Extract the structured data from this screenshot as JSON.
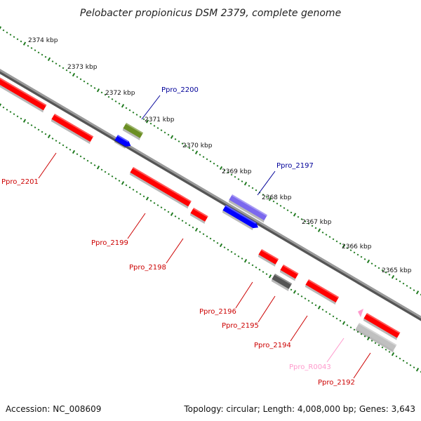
{
  "title": "Pelobacter propionicus DSM 2379, complete genome",
  "footer": {
    "accession": "Accession: NC_008609",
    "summary": "Topology: circular; Length: 4,008,000 bp; Genes: 3,643"
  },
  "colors": {
    "backbone": "#8a8a8a",
    "ticks": "#1f7a1f",
    "forward": "#ff0000",
    "reverse_label": "#cc0000",
    "blue": "#0000ff",
    "navy_label": "#000099",
    "olive": "#6b8e23",
    "violet": "#7b68ee",
    "dark_gray": "#555555",
    "light_gray": "#c0c0c0",
    "pink": "#ff99cc"
  },
  "kbp_ticks": [
    "2374 kbp",
    "2373 kbp",
    "2372 kbp",
    "2371 kbp",
    "2370 kbp",
    "2369 kbp",
    "2368 kbp",
    "2367 kbp",
    "2366 kbp",
    "2365 kbp"
  ],
  "gene_labels": [
    {
      "text": "Ppro_2201",
      "color": "#cc0000"
    },
    {
      "text": "Ppro_2200",
      "color": "#000099"
    },
    {
      "text": "Ppro_2199",
      "color": "#cc0000"
    },
    {
      "text": "Ppro_2198",
      "color": "#cc0000"
    },
    {
      "text": "Ppro_2197",
      "color": "#000099"
    },
    {
      "text": "Ppro_2196",
      "color": "#cc0000"
    },
    {
      "text": "Ppro_2195",
      "color": "#cc0000"
    },
    {
      "text": "Ppro_2194",
      "color": "#cc0000"
    },
    {
      "text": "Ppro_R0043",
      "color": "#ff99cc"
    },
    {
      "text": "Ppro_2192",
      "color": "#cc0000"
    }
  ]
}
